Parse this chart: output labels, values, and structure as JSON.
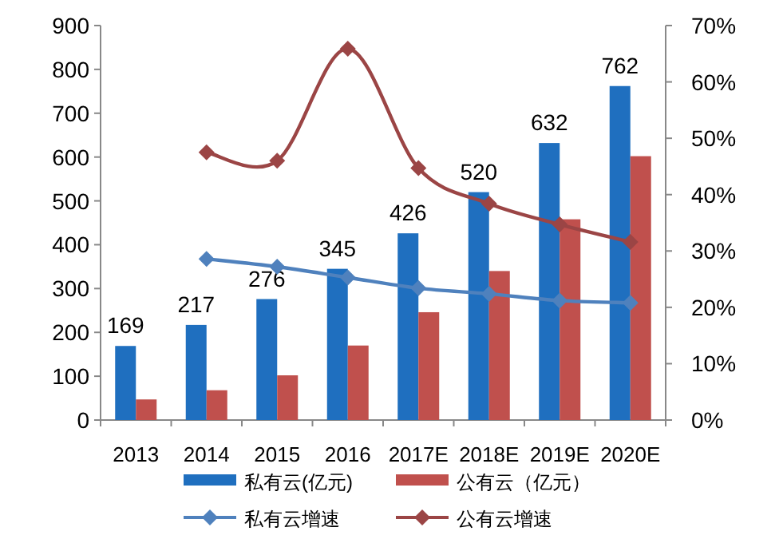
{
  "chart_data": {
    "type": "bar",
    "categories": [
      "2013",
      "2014",
      "2015",
      "2016",
      "2017E",
      "2018E",
      "2019E",
      "2020E"
    ],
    "series": [
      {
        "name": "私有云(亿元)",
        "color": "#1f6fbf",
        "values": [
          169,
          217,
          276,
          345,
          426,
          520,
          632,
          762
        ],
        "value_labels": [
          "169",
          "217",
          "276",
          "345",
          "426",
          "520",
          "632",
          "762"
        ]
      },
      {
        "name": "公有云（亿元）",
        "color": "#c0504d",
        "values": [
          47,
          68,
          102,
          170,
          246,
          340,
          458,
          602
        ]
      },
      {
        "name": "私有云增速",
        "type": "line",
        "axis": "y2",
        "color": "#4f81bd",
        "marker": "diamond",
        "line_style": "solid",
        "values": [
          null,
          28.6,
          27.2,
          25.3,
          23.4,
          22.4,
          21.2,
          20.8
        ]
      },
      {
        "name": "公有云增速",
        "type": "line",
        "axis": "y2",
        "color": "#9b4545",
        "marker": "diamond",
        "line_style": "solid",
        "values": [
          null,
          47.5,
          46.0,
          65.9,
          44.7,
          38.4,
          34.7,
          31.6
        ]
      }
    ],
    "ylim": [
      0,
      900
    ],
    "yticks": [
      0,
      100,
      200,
      300,
      400,
      500,
      600,
      700,
      800,
      900
    ],
    "y2lim": [
      0,
      70
    ],
    "y2ticks": [
      {
        "value": 0,
        "label": "0%"
      },
      {
        "value": 10,
        "label": "10%"
      },
      {
        "value": 20,
        "label": "20%"
      },
      {
        "value": 30,
        "label": "30%"
      },
      {
        "value": 40,
        "label": "40%"
      },
      {
        "value": 50,
        "label": "50%"
      },
      {
        "value": 60,
        "label": "60%"
      },
      {
        "value": 70,
        "label": "70%"
      }
    ],
    "grid": false,
    "legend": "bottom"
  }
}
